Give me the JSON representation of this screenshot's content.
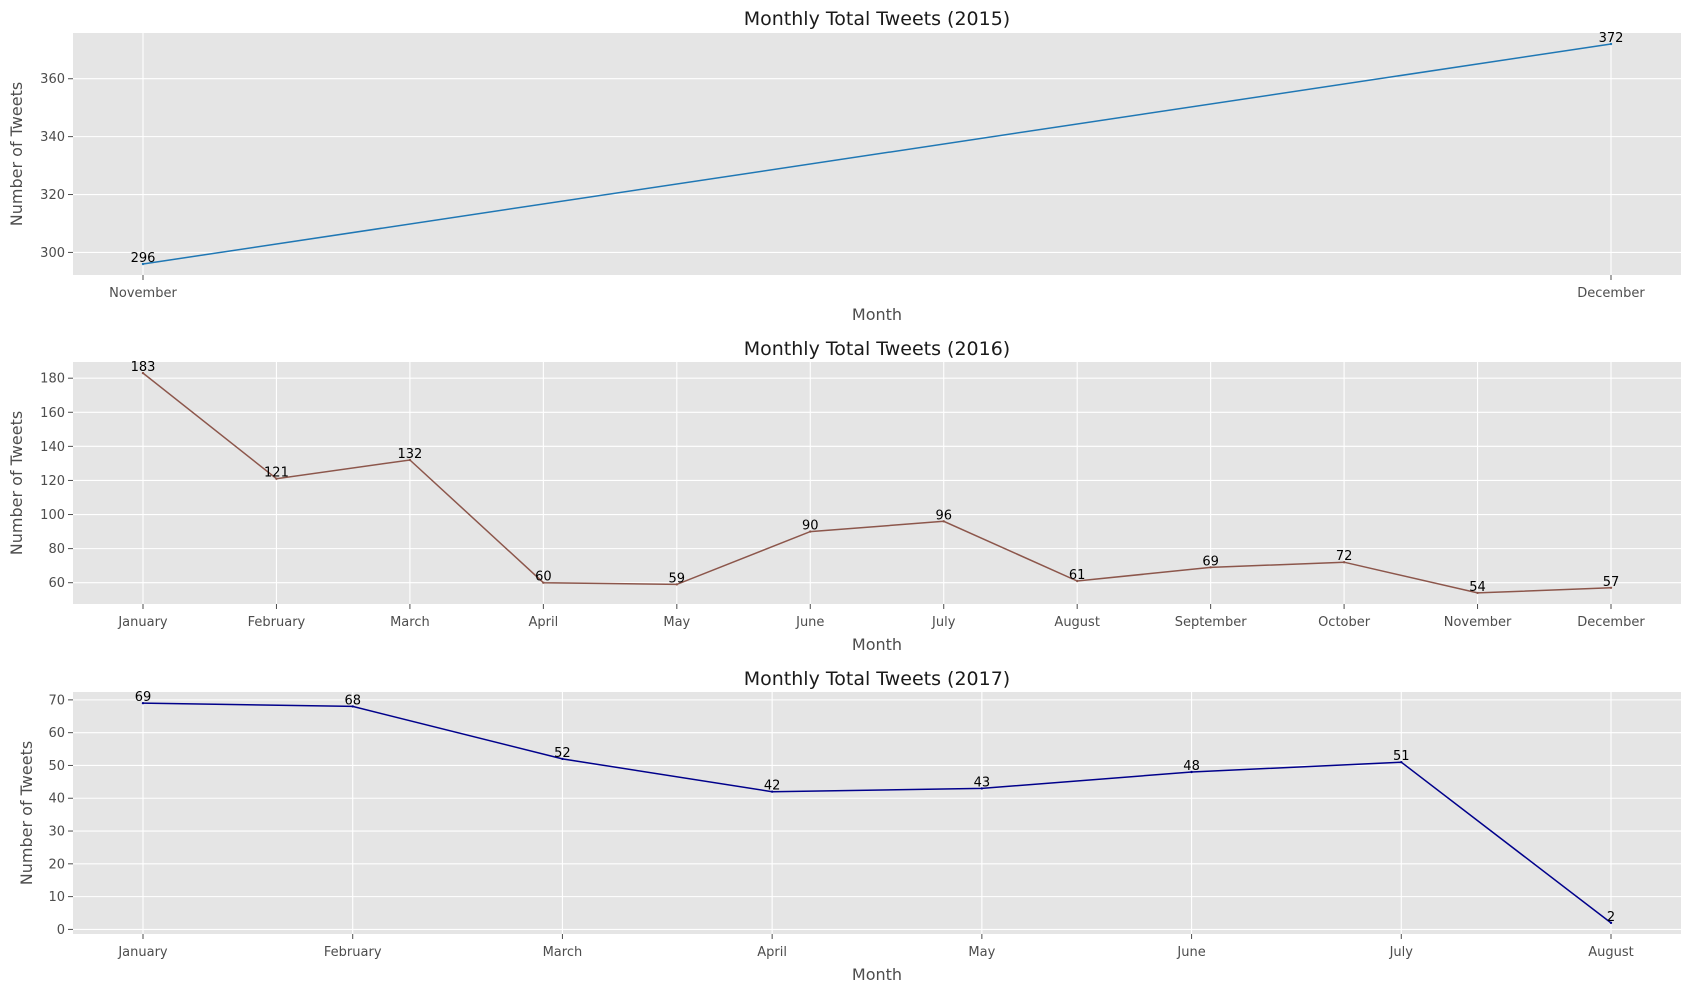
{
  "colors": {
    "background": "#ffffff",
    "plot_background": "#e5e5e5",
    "grid": "#ffffff"
  },
  "chart_data": [
    {
      "type": "line",
      "title": "Monthly Total Tweets (2015)",
      "xlabel": "Month",
      "ylabel": "Number of Tweets",
      "categories": [
        "November",
        "December"
      ],
      "series": [
        {
          "values": [
            296,
            372
          ],
          "color": "#1f77b4"
        }
      ],
      "ylim": [
        292.2,
        375.8
      ],
      "yticks": [
        300,
        320,
        340,
        360
      ],
      "grid": true,
      "data_labels": true
    },
    {
      "type": "line",
      "title": "Monthly Total Tweets (2016)",
      "xlabel": "Month",
      "ylabel": "Number of Tweets",
      "categories": [
        "January",
        "February",
        "March",
        "April",
        "May",
        "June",
        "July",
        "August",
        "September",
        "October",
        "November",
        "December"
      ],
      "series": [
        {
          "values": [
            183,
            121,
            132,
            60,
            59,
            90,
            96,
            61,
            69,
            72,
            54,
            57
          ],
          "color": "#8c564b"
        }
      ],
      "ylim": [
        47.5,
        189.5
      ],
      "yticks": [
        60,
        80,
        100,
        120,
        140,
        160,
        180
      ],
      "grid": true,
      "data_labels": true
    },
    {
      "type": "line",
      "title": "Monthly Total Tweets (2017)",
      "xlabel": "Month",
      "ylabel": "Number of Tweets",
      "categories": [
        "January",
        "February",
        "March",
        "April",
        "May",
        "June",
        "July",
        "August"
      ],
      "series": [
        {
          "values": [
            69,
            68,
            52,
            42,
            43,
            48,
            51,
            2
          ],
          "color": "#00008b"
        }
      ],
      "ylim": [
        -1.4,
        72.4
      ],
      "yticks": [
        0,
        10,
        20,
        30,
        40,
        50,
        60,
        70
      ],
      "grid": true,
      "data_labels": true
    }
  ]
}
